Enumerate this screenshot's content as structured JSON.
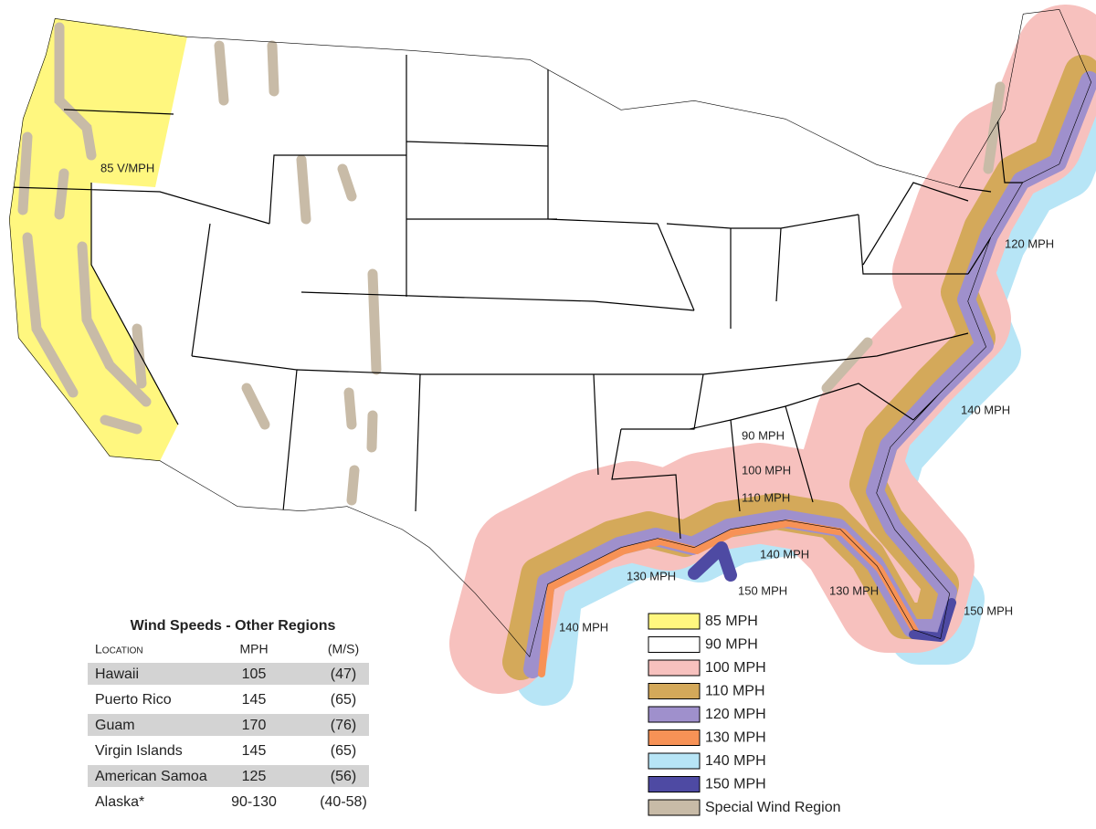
{
  "map_labels": [
    "85 V/MPH",
    "120 MPH",
    "140 MPH",
    "90 MPH",
    "100 MPH",
    "110 MPH",
    "140 MPH",
    "130 MPH",
    "150 MPH",
    "130 MPH",
    "150 MPH",
    "140 MPH"
  ],
  "legend": [
    {
      "label": "85 MPH",
      "color": "#fff77f"
    },
    {
      "label": "90 MPH",
      "color": "#ffffff"
    },
    {
      "label": "100 MPH",
      "color": "#f7c1be"
    },
    {
      "label": "110 MPH",
      "color": "#d4a95a"
    },
    {
      "label": "120 MPH",
      "color": "#9f90cc"
    },
    {
      "label": "130 MPH",
      "color": "#f79256"
    },
    {
      "label": "140 MPH",
      "color": "#b7e5f6"
    },
    {
      "label": "150 MPH",
      "color": "#4e4aa3"
    },
    {
      "label": "Special Wind Region",
      "color": "#c8bba7"
    }
  ],
  "table": {
    "title": "Wind Speeds - Other Regions",
    "columns": [
      "Location",
      "MPH",
      "(M/S)"
    ],
    "rows": [
      [
        "Hawaii",
        "105",
        "(47)"
      ],
      [
        "Puerto Rico",
        "145",
        "(65)"
      ],
      [
        "Guam",
        "170",
        "(76)"
      ],
      [
        "Virgin Islands",
        "145",
        "(65)"
      ],
      [
        "American Samoa",
        "125",
        "(56)"
      ],
      [
        "Alaska*",
        "90-130",
        "(40-58)"
      ]
    ]
  }
}
